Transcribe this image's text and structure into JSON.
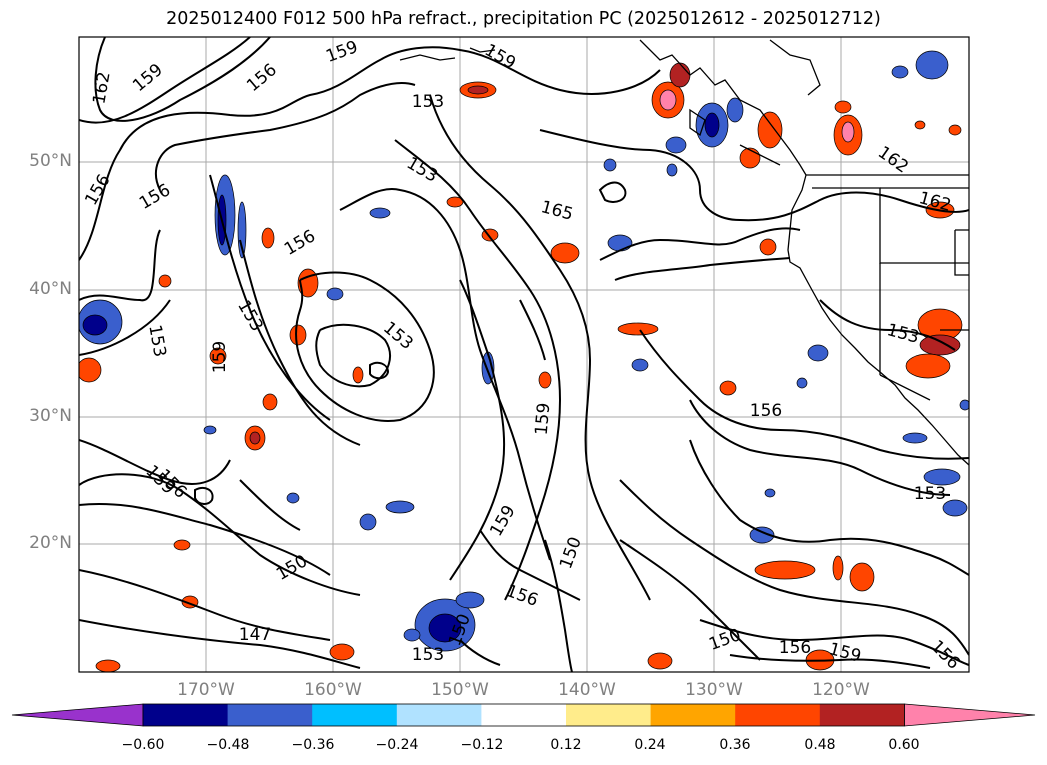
{
  "title": "2025012400 F012 500 hPa refract., precipitation PC (2025012612 - 2025012712)",
  "lat_labels": [
    "50°N",
    "40°N",
    "30°N",
    "20°N"
  ],
  "lon_labels": [
    "170°W",
    "160°W",
    "150°W",
    "140°W",
    "130°W",
    "120°W"
  ],
  "colorbar": {
    "ticks": [
      "−0.60",
      "−0.48",
      "−0.36",
      "−0.24",
      "−0.12",
      "0.12",
      "0.24",
      "0.36",
      "0.48",
      "0.60"
    ],
    "colors": [
      "#9932cc",
      "#00008b",
      "#3a5fcd",
      "#00bfff",
      "#b0e2ff",
      "#ffffff",
      "#ffec8b",
      "#ffa500",
      "#ff4500",
      "#b22222",
      "#ff82ab"
    ]
  },
  "contour_labels": [
    "162",
    "159",
    "156",
    "159",
    "153",
    "159",
    "153",
    "165",
    "162",
    "162",
    "156",
    "156",
    "156",
    "153",
    "153",
    "159",
    "153",
    "159",
    "156",
    "156",
    "150",
    "150",
    "147",
    "159",
    "156",
    "150",
    "153",
    "153",
    "150",
    "156",
    "159",
    "153",
    "156",
    "159"
  ],
  "colors": {
    "contour": "#000000",
    "grid": "#a9a9a9",
    "coast": "#000000",
    "positive": [
      "#ffec8b",
      "#ffa500",
      "#ff4500",
      "#b22222",
      "#ff82ab"
    ],
    "negative": [
      "#b0e2ff",
      "#00bfff",
      "#3a5fcd",
      "#00008b",
      "#9932cc"
    ]
  }
}
